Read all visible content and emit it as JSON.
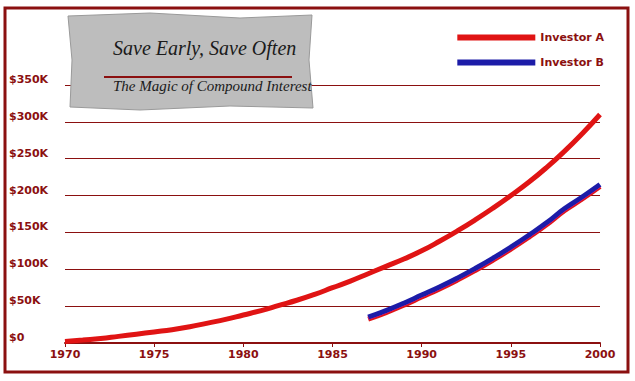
{
  "chart_data": {
    "type": "line",
    "title": "Save Early, Save Often",
    "subtitle": "The Magic of Compound Interest",
    "x": [
      1970,
      1971,
      1972,
      1973,
      1974,
      1975,
      1976,
      1977,
      1978,
      1979,
      1980,
      1981,
      1982,
      1983,
      1984,
      1985,
      1986,
      1987,
      1988,
      1989,
      1990,
      1991,
      1992,
      1993,
      1994,
      1995,
      1996,
      1997,
      1998,
      1999,
      2000
    ],
    "series": [
      {
        "name": "Investor A",
        "color": "#e01414",
        "values": [
          2000,
          4000,
          6000,
          9000,
          12000,
          15000,
          18000,
          22000,
          27000,
          32000,
          38000,
          44000,
          51000,
          58000,
          66000,
          75000,
          84000,
          94000,
          104000,
          114000,
          125000,
          138000,
          152000,
          167000,
          183000,
          200000,
          218000,
          238000,
          260000,
          284000,
          310000
        ]
      },
      {
        "name": "Investor B",
        "color": "#1c1ca8",
        "values": [
          null,
          null,
          null,
          null,
          null,
          null,
          null,
          null,
          null,
          null,
          null,
          null,
          null,
          null,
          null,
          null,
          null,
          35000,
          44000,
          54000,
          65000,
          76000,
          88000,
          101000,
          115000,
          130000,
          146000,
          163000,
          182000,
          198000,
          215000
        ]
      }
    ],
    "xlim": [
      1970,
      2000
    ],
    "xticks": [
      1970,
      1975,
      1980,
      1985,
      1990,
      1995,
      2000
    ],
    "ylim": [
      0,
      350000
    ],
    "yticks": [
      {
        "value": 0,
        "label": "$0"
      },
      {
        "value": 50000,
        "label": "$50K"
      },
      {
        "value": 100000,
        "label": "$100K"
      },
      {
        "value": 150000,
        "label": "$150K"
      },
      {
        "value": 200000,
        "label": "$200K"
      },
      {
        "value": 250000,
        "label": "$250K"
      },
      {
        "value": 300000,
        "label": "$300K"
      },
      {
        "value": 350000,
        "label": "$350K"
      }
    ],
    "grid": true,
    "legend": "top-right",
    "marker": "none",
    "line_style": "solid"
  }
}
